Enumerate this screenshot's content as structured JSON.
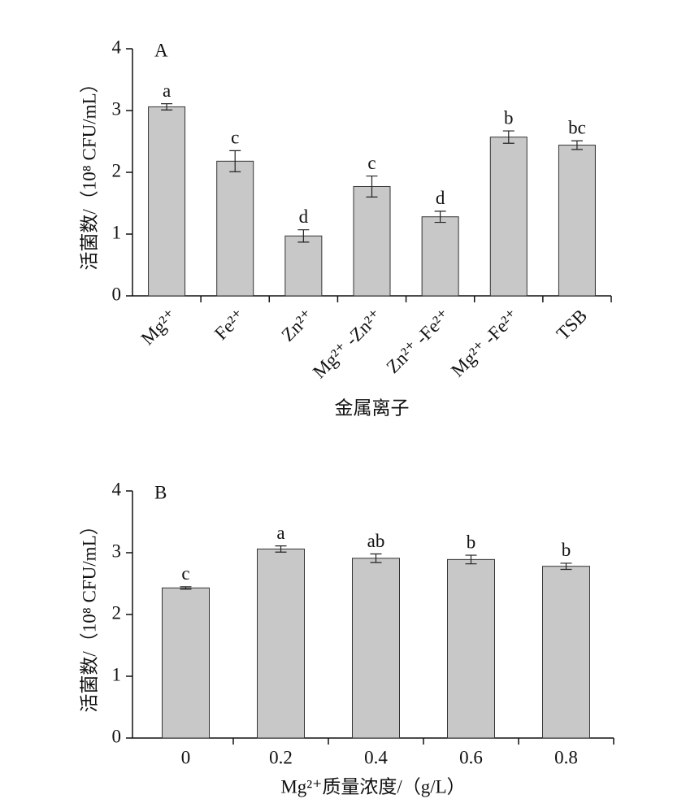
{
  "chart_data": [
    {
      "type": "bar",
      "title": "A",
      "ylabel": "活菌数/（10⁸ CFU/mL）",
      "xlabel": "金属离子",
      "categories": [
        "Mg²⁺",
        "Fe²⁺",
        "Zn²⁺",
        "Mg²⁺ -Zn²⁺",
        "Zn²⁺ -Fe²⁺",
        "Mg²⁺ -Fe²⁺",
        "TSB"
      ],
      "values": [
        3.06,
        2.18,
        0.97,
        1.77,
        1.28,
        2.57,
        2.44
      ],
      "errors": [
        0.05,
        0.17,
        0.1,
        0.17,
        0.09,
        0.1,
        0.07
      ],
      "annotations": [
        "a",
        "c",
        "d",
        "c",
        "d",
        "b",
        "bc"
      ],
      "color": "#c8c8c8",
      "ylim": [
        0,
        4
      ],
      "yticks": [
        0,
        1,
        2,
        3,
        4
      ]
    },
    {
      "type": "bar",
      "title": "B",
      "ylabel": "活菌数/（10⁸ CFU/mL）",
      "xlabel": "Mg²⁺质量浓度/（g/L）",
      "categories": [
        "0",
        "0.2",
        "0.4",
        "0.6",
        "0.8"
      ],
      "values": [
        2.43,
        3.06,
        2.91,
        2.89,
        2.78
      ],
      "errors": [
        0.02,
        0.05,
        0.07,
        0.07,
        0.05
      ],
      "annotations": [
        "c",
        "a",
        "ab",
        "b",
        "b"
      ],
      "color": "#c8c8c8",
      "ylim": [
        0,
        4
      ],
      "yticks": [
        0,
        1,
        2,
        3,
        4
      ]
    }
  ]
}
